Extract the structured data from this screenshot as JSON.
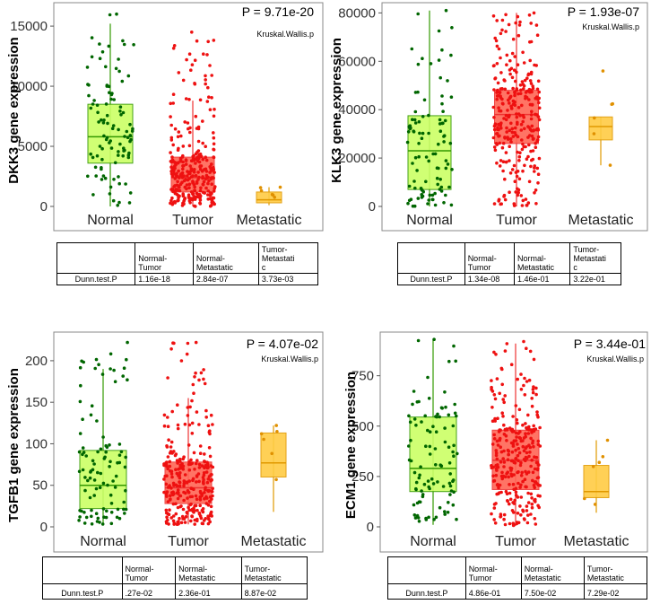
{
  "figure": {
    "stat_method": "Kruskal.Wallis.p",
    "table_row_label": "Dunn.test.P",
    "colors": {
      "normal_fill": "#ccff66",
      "normal_edge": "#339900",
      "normal_point": "#006600",
      "tumor_fill": "#ff6655",
      "tumor_edge": "#ee3333",
      "tumor_point": "#ee1111",
      "metastatic_fill": "#ffcc44",
      "metastatic_edge": "#e09900",
      "metastatic_point": "#e09000"
    }
  },
  "chart_data": [
    {
      "type": "box",
      "title": "P = 9.71e-20",
      "subtitle": "Kruskal.Wallis.p",
      "ylabel": "DKK3 gene expression",
      "categories": [
        "Normal",
        "Tumor",
        "Metastatic"
      ],
      "ylim": [
        -500,
        16500
      ],
      "yticks": [
        0,
        5000,
        10000,
        15000
      ],
      "boxes": [
        {
          "name": "Normal",
          "whisker_low": 0,
          "q1": 3600,
          "median": 5800,
          "q3": 8500,
          "whisker_high": 15200,
          "n_points": 100,
          "point_max": 16000
        },
        {
          "name": "Tumor",
          "whisker_low": 0,
          "q1": 1200,
          "median": 2400,
          "q3": 4100,
          "whisker_high": 8800,
          "n_points": 300,
          "point_max": 14500
        },
        {
          "name": "Metastatic",
          "whisker_low": 100,
          "q1": 300,
          "median": 550,
          "q3": 1200,
          "whisker_high": 1600,
          "n_points": 6,
          "point_max": 1600
        }
      ],
      "table": {
        "headers": [
          "Normal-\nTumor",
          "Normal-\nMetastatic",
          "Tumor-\nMetastati\nc"
        ],
        "values": [
          "1.16e-18",
          "2.84e-07",
          "3.73e-03"
        ]
      }
    },
    {
      "type": "box",
      "title": "P = 1.93e-07",
      "subtitle": "Kruskal.Wallis.p",
      "ylabel": "KLK3 gene expression",
      "categories": [
        "Normal",
        "Tumor",
        "Metastatic"
      ],
      "ylim": [
        -2000,
        82000
      ],
      "yticks": [
        0,
        20000,
        40000,
        60000,
        80000
      ],
      "boxes": [
        {
          "name": "Normal",
          "whisker_low": 0,
          "q1": 7000,
          "median": 23000,
          "q3": 37500,
          "whisker_high": 81000,
          "n_points": 100,
          "point_max": 81000
        },
        {
          "name": "Tumor",
          "whisker_low": 0,
          "q1": 26000,
          "median": 38000,
          "q3": 48000,
          "whisker_high": 80000,
          "n_points": 300,
          "point_max": 80000
        },
        {
          "name": "Metastatic",
          "whisker_low": 17000,
          "q1": 27500,
          "median": 33000,
          "q3": 37000,
          "whisker_high": 37000,
          "n_points": 6,
          "point_max": 56000
        }
      ],
      "table": {
        "headers": [
          "Normal-\nTumor",
          "Normal-\nMetastatic",
          "Tumor-\nMetastati\nc"
        ],
        "values": [
          "1.34e-08",
          "1.46e-01",
          "3.22e-01"
        ]
      }
    },
    {
      "type": "box",
      "title": "P = 4.07e-02",
      "subtitle": "Kruskal.Wallis.p",
      "ylabel": "TGFB1 gene expression",
      "categories": [
        "Normal",
        "Tumor",
        "Metastatic"
      ],
      "ylim": [
        -5,
        228
      ],
      "yticks": [
        0,
        50,
        100,
        150,
        200
      ],
      "boxes": [
        {
          "name": "Normal",
          "whisker_low": 3,
          "q1": 22,
          "median": 50,
          "q3": 92,
          "whisker_high": 190,
          "n_points": 100,
          "point_max": 222
        },
        {
          "name": "Tumor",
          "whisker_low": 3,
          "q1": 28,
          "median": 47,
          "q3": 78,
          "whisker_high": 155,
          "n_points": 300,
          "point_max": 222
        },
        {
          "name": "Metastatic",
          "whisker_low": 18,
          "q1": 60,
          "median": 77,
          "q3": 113,
          "whisker_high": 122,
          "n_points": 6,
          "point_max": 122
        }
      ],
      "table": {
        "headers": [
          "Normal-\nTumor",
          "Normal-\nMetastatic",
          "Tumor-\nMetastatic"
        ],
        "values": [
          ".27e-02",
          "2.36e-01",
          "8.87e-02"
        ]
      }
    },
    {
      "type": "box",
      "title": "P = 3.44e-01",
      "subtitle": "Kruskal.Wallis.p",
      "ylabel": "ECM1 gene expression",
      "categories": [
        "Normal",
        "Tumor",
        "Metastatic"
      ],
      "ylim": [
        -20,
        940
      ],
      "yticks": [
        0,
        250,
        500,
        750
      ],
      "boxes": [
        {
          "name": "Normal",
          "whisker_low": 10,
          "q1": 175,
          "median": 290,
          "q3": 545,
          "whisker_high": 930,
          "n_points": 100,
          "point_max": 930
        },
        {
          "name": "Tumor",
          "whisker_low": 5,
          "q1": 185,
          "median": 330,
          "q3": 480,
          "whisker_high": 910,
          "n_points": 300,
          "point_max": 920
        },
        {
          "name": "Metastatic",
          "whisker_low": 70,
          "q1": 145,
          "median": 175,
          "q3": 305,
          "whisker_high": 430,
          "n_points": 6,
          "point_max": 430
        }
      ],
      "table": {
        "headers": [
          "Normal-\nTumor",
          "Normal-\nMetastatic",
          "Tumor-\nMetastatic"
        ],
        "values": [
          "4.86e-01",
          "7.50e-02",
          "7.29e-02"
        ]
      }
    }
  ]
}
